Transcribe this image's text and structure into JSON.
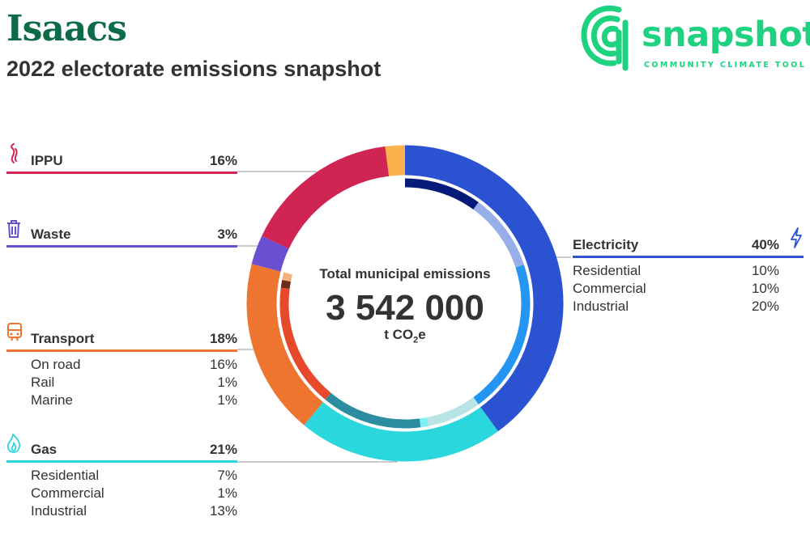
{
  "header": {
    "title": "Isaacs",
    "subtitle": "2022 electorate emissions snapshot"
  },
  "brand": {
    "name": "snapshot",
    "tagline": "COMMUNITY CLIMATE TOOL",
    "color": "#1fd27f",
    "icon": "snapshot-logo-icon"
  },
  "center": {
    "title": "Total municipal emissions",
    "value": "3 542 000",
    "unit_prefix": "t CO",
    "unit_sub": "2",
    "unit_suffix": "e"
  },
  "chart_data": {
    "type": "pie",
    "style": "donut-with-inner-ring",
    "total": 3542000,
    "categories": [
      {
        "key": "electricity",
        "name": "Electricity",
        "percent": "40%",
        "value": 40,
        "color": "#2b52d0",
        "icon": "lightning-icon",
        "subs": [
          {
            "name": "Residential",
            "percent": "10%",
            "value": 10,
            "color": "#061a7a"
          },
          {
            "name": "Commercial",
            "percent": "10%",
            "value": 10,
            "color": "#97aee9"
          },
          {
            "name": "Industrial",
            "percent": "20%",
            "value": 20,
            "color": "#2495f3"
          }
        ]
      },
      {
        "key": "gas",
        "name": "Gas",
        "percent": "21%",
        "value": 21,
        "color": "#2ad7dd",
        "icon": "flame-icon",
        "subs": [
          {
            "name": "Residential",
            "percent": "7%",
            "value": 7,
            "color": "#b8e4e6"
          },
          {
            "name": "Commercial",
            "percent": "1%",
            "value": 1,
            "color": "#7af2f5"
          },
          {
            "name": "Industrial",
            "percent": "13%",
            "value": 13,
            "color": "#2b8d9f"
          }
        ]
      },
      {
        "key": "transport",
        "name": "Transport",
        "percent": "18%",
        "value": 18,
        "color": "#ee7530",
        "icon": "train-icon",
        "subs": [
          {
            "name": "On road",
            "percent": "16%",
            "value": 16,
            "color": "#e74a2a"
          },
          {
            "name": "Rail",
            "percent": "1%",
            "value": 1,
            "color": "#6b2d1a"
          },
          {
            "name": "Marine",
            "percent": "1%",
            "value": 1,
            "color": "#f6b079"
          }
        ]
      },
      {
        "key": "waste",
        "name": "Waste",
        "percent": "3%",
        "value": 3,
        "color": "#6b4fd1",
        "icon": "bin-icon",
        "subs": []
      },
      {
        "key": "ippu",
        "name": "IPPU",
        "percent": "16%",
        "value": 16,
        "color": "#d02452",
        "icon": "smoke-icon",
        "subs": []
      },
      {
        "key": "other",
        "name": "",
        "percent": "",
        "value": 2,
        "color": "#f9b24c",
        "icon": "",
        "subs": []
      }
    ]
  }
}
